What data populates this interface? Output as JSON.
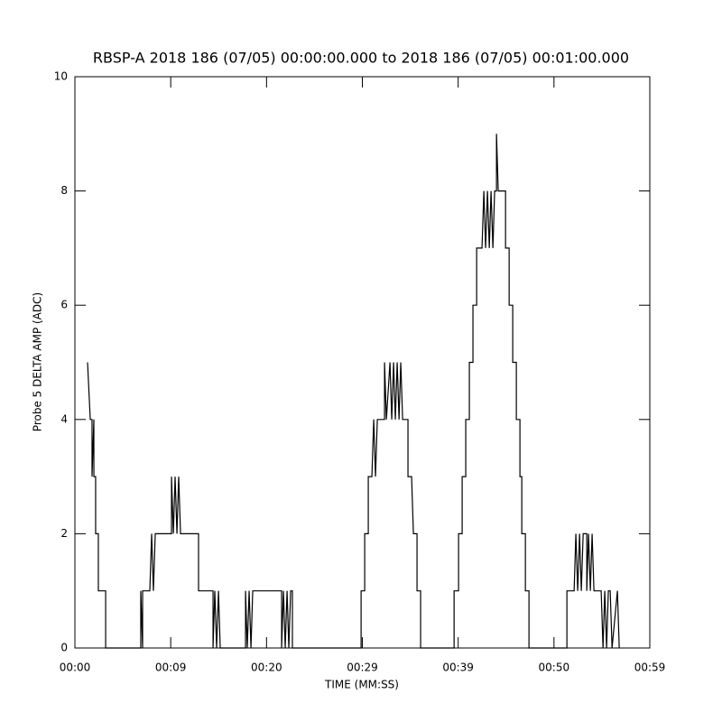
{
  "chart_data": {
    "type": "line",
    "title": "RBSP-A 2018 186 (07/05) 00:00:00.000 to 2018 186 (07/05) 00:01:00.000",
    "x_label": "TIME (MM:SS)",
    "y_label": "Probe 5 DELTA AMP (ADC)",
    "xlim": [
      0,
      59.1
    ],
    "xticks": [
      {
        "value": 0,
        "label": "00:00"
      },
      {
        "value": 9.85,
        "label": "00:09"
      },
      {
        "value": 19.7,
        "label": "00:20"
      },
      {
        "value": 29.55,
        "label": "00:29"
      },
      {
        "value": 39.4,
        "label": "00:39"
      },
      {
        "value": 49.25,
        "label": "00:50"
      },
      {
        "value": 59.1,
        "label": "00:59"
      }
    ],
    "ylim": [
      0,
      10
    ],
    "yticks": [
      0,
      2,
      4,
      6,
      8,
      10
    ],
    "color": "#000000",
    "x": [
      1.3,
      1.58,
      1.76,
      1.76,
      1.95,
      1.95,
      2.13,
      2.13,
      2.41,
      2.41,
      3.16,
      3.16,
      6.77,
      6.77,
      6.96,
      6.96,
      7.7,
      7.89,
      8.07,
      8.26,
      9.93,
      9.93,
      10.12,
      10.3,
      10.49,
      10.67,
      10.86,
      12.71,
      12.71,
      14.2,
      14.2,
      14.38,
      14.57,
      14.76,
      14.94,
      17.54,
      17.54,
      17.72,
      17.91,
      18.1,
      18.28,
      21.25,
      21.25,
      21.44,
      21.62,
      21.81,
      21.99,
      22.18,
      22.36,
      22.36,
      29.42,
      29.42,
      29.79,
      29.79,
      30.16,
      30.16,
      30.53,
      30.72,
      30.9,
      31.09,
      31.83,
      31.83,
      32.02,
      32.39,
      32.57,
      32.76,
      32.94,
      33.13,
      33.32,
      33.5,
      33.69,
      34.24,
      34.24,
      34.61,
      34.8,
      35.17,
      35.17,
      35.54,
      35.54,
      38.98,
      38.98,
      39.44,
      39.44,
      39.81,
      39.81,
      40.18,
      40.18,
      40.55,
      40.55,
      40.92,
      40.92,
      41.3,
      41.3,
      41.85,
      42.04,
      42.22,
      42.41,
      42.6,
      42.78,
      42.97,
      43.15,
      43.34,
      43.34,
      43.52,
      44.27,
      44.27,
      44.64,
      44.64,
      45.01,
      45.01,
      45.38,
      45.38,
      45.75,
      45.75,
      45.94,
      45.94,
      46.31,
      46.31,
      46.68,
      46.68,
      50.58,
      50.58,
      51.32,
      51.5,
      51.69,
      51.88,
      52.06,
      52.25,
      52.62,
      52.62,
      52.8,
      52.99,
      53.17,
      53.36,
      54.1,
      54.29,
      54.47,
      54.66,
      54.84,
      55.03,
      55.22,
      55.77,
      55.96
    ],
    "values": [
      5,
      4,
      4,
      3,
      4,
      3,
      3,
      2,
      2,
      1,
      1,
      0,
      0,
      1,
      0,
      1,
      1,
      2,
      1,
      2,
      2,
      3,
      2,
      3,
      2,
      3,
      2,
      2,
      1,
      1,
      0,
      1,
      0,
      1,
      0,
      0,
      1,
      0,
      1,
      0,
      1,
      1,
      0,
      1,
      0,
      1,
      0,
      1,
      1,
      0,
      0,
      1,
      1,
      2,
      2,
      3,
      3,
      4,
      3,
      4,
      4,
      5,
      4,
      5,
      4,
      5,
      4,
      5,
      4,
      5,
      4,
      4,
      3,
      3,
      2,
      2,
      1,
      1,
      0,
      0,
      1,
      1,
      2,
      2,
      3,
      3,
      4,
      4,
      5,
      5,
      6,
      6,
      7,
      7,
      8,
      7,
      8,
      7,
      8,
      7,
      8,
      8,
      9,
      8,
      8,
      7,
      7,
      6,
      6,
      5,
      5,
      4,
      4,
      3,
      3,
      2,
      2,
      1,
      1,
      0,
      0,
      1,
      1,
      2,
      1,
      2,
      1,
      2,
      2,
      1,
      2,
      1,
      2,
      1,
      1,
      0,
      1,
      0,
      1,
      1,
      0,
      1,
      0
    ]
  }
}
